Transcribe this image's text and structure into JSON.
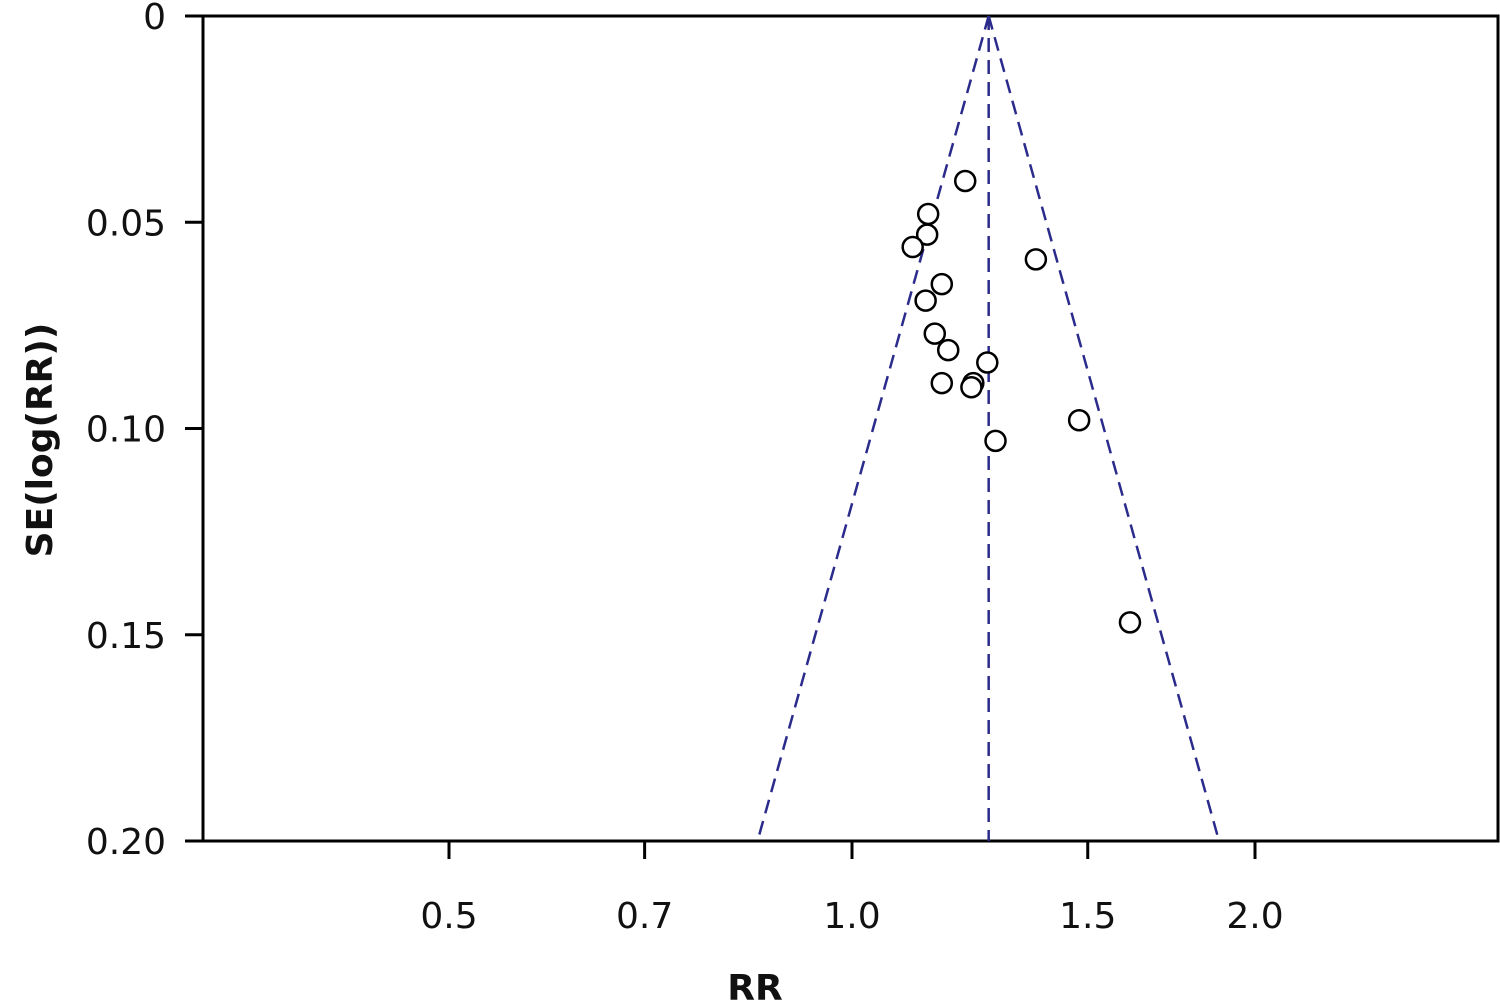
{
  "chart_data": {
    "type": "scatter",
    "subtype": "funnel-plot",
    "title": "",
    "xlabel": "RR",
    "ylabel": "SE(log(RR))",
    "x_scale": "log",
    "y_inverted": true,
    "xlim": [
      0.3,
      2.7
    ],
    "ylim": [
      0,
      0.2
    ],
    "x_ticks": [
      {
        "value": 0.5,
        "label": "0.5"
      },
      {
        "value": 0.7,
        "label": "0.7"
      },
      {
        "value": 1.0,
        "label": "1.0"
      },
      {
        "value": 1.5,
        "label": "1.5"
      },
      {
        "value": 2.0,
        "label": "2.0"
      }
    ],
    "y_ticks": [
      {
        "value": 0,
        "label": "0"
      },
      {
        "value": 0.05,
        "label": "0.05"
      },
      {
        "value": 0.1,
        "label": "0.10"
      },
      {
        "value": 0.15,
        "label": "0.15"
      },
      {
        "value": 0.2,
        "label": "0.20"
      }
    ],
    "pooled_rr": 1.265,
    "funnel_bottom": {
      "se": 0.2,
      "left_rr": 0.85,
      "right_rr": 1.88
    },
    "funnel_style": {
      "color": "#2b2b8c",
      "dashed": true
    },
    "marker": {
      "shape": "open-circle",
      "color": "#000000"
    },
    "points": [
      {
        "x": 1.215,
        "y": 0.04
      },
      {
        "x": 1.14,
        "y": 0.048
      },
      {
        "x": 1.138,
        "y": 0.053
      },
      {
        "x": 1.11,
        "y": 0.056
      },
      {
        "x": 1.372,
        "y": 0.059
      },
      {
        "x": 1.167,
        "y": 0.065
      },
      {
        "x": 1.135,
        "y": 0.069
      },
      {
        "x": 1.153,
        "y": 0.077
      },
      {
        "x": 1.18,
        "y": 0.081
      },
      {
        "x": 1.262,
        "y": 0.084
      },
      {
        "x": 1.232,
        "y": 0.089
      },
      {
        "x": 1.167,
        "y": 0.089
      },
      {
        "x": 1.228,
        "y": 0.09
      },
      {
        "x": 1.478,
        "y": 0.098
      },
      {
        "x": 1.28,
        "y": 0.103
      },
      {
        "x": 1.613,
        "y": 0.147
      }
    ],
    "grid": false,
    "legend": "none"
  }
}
